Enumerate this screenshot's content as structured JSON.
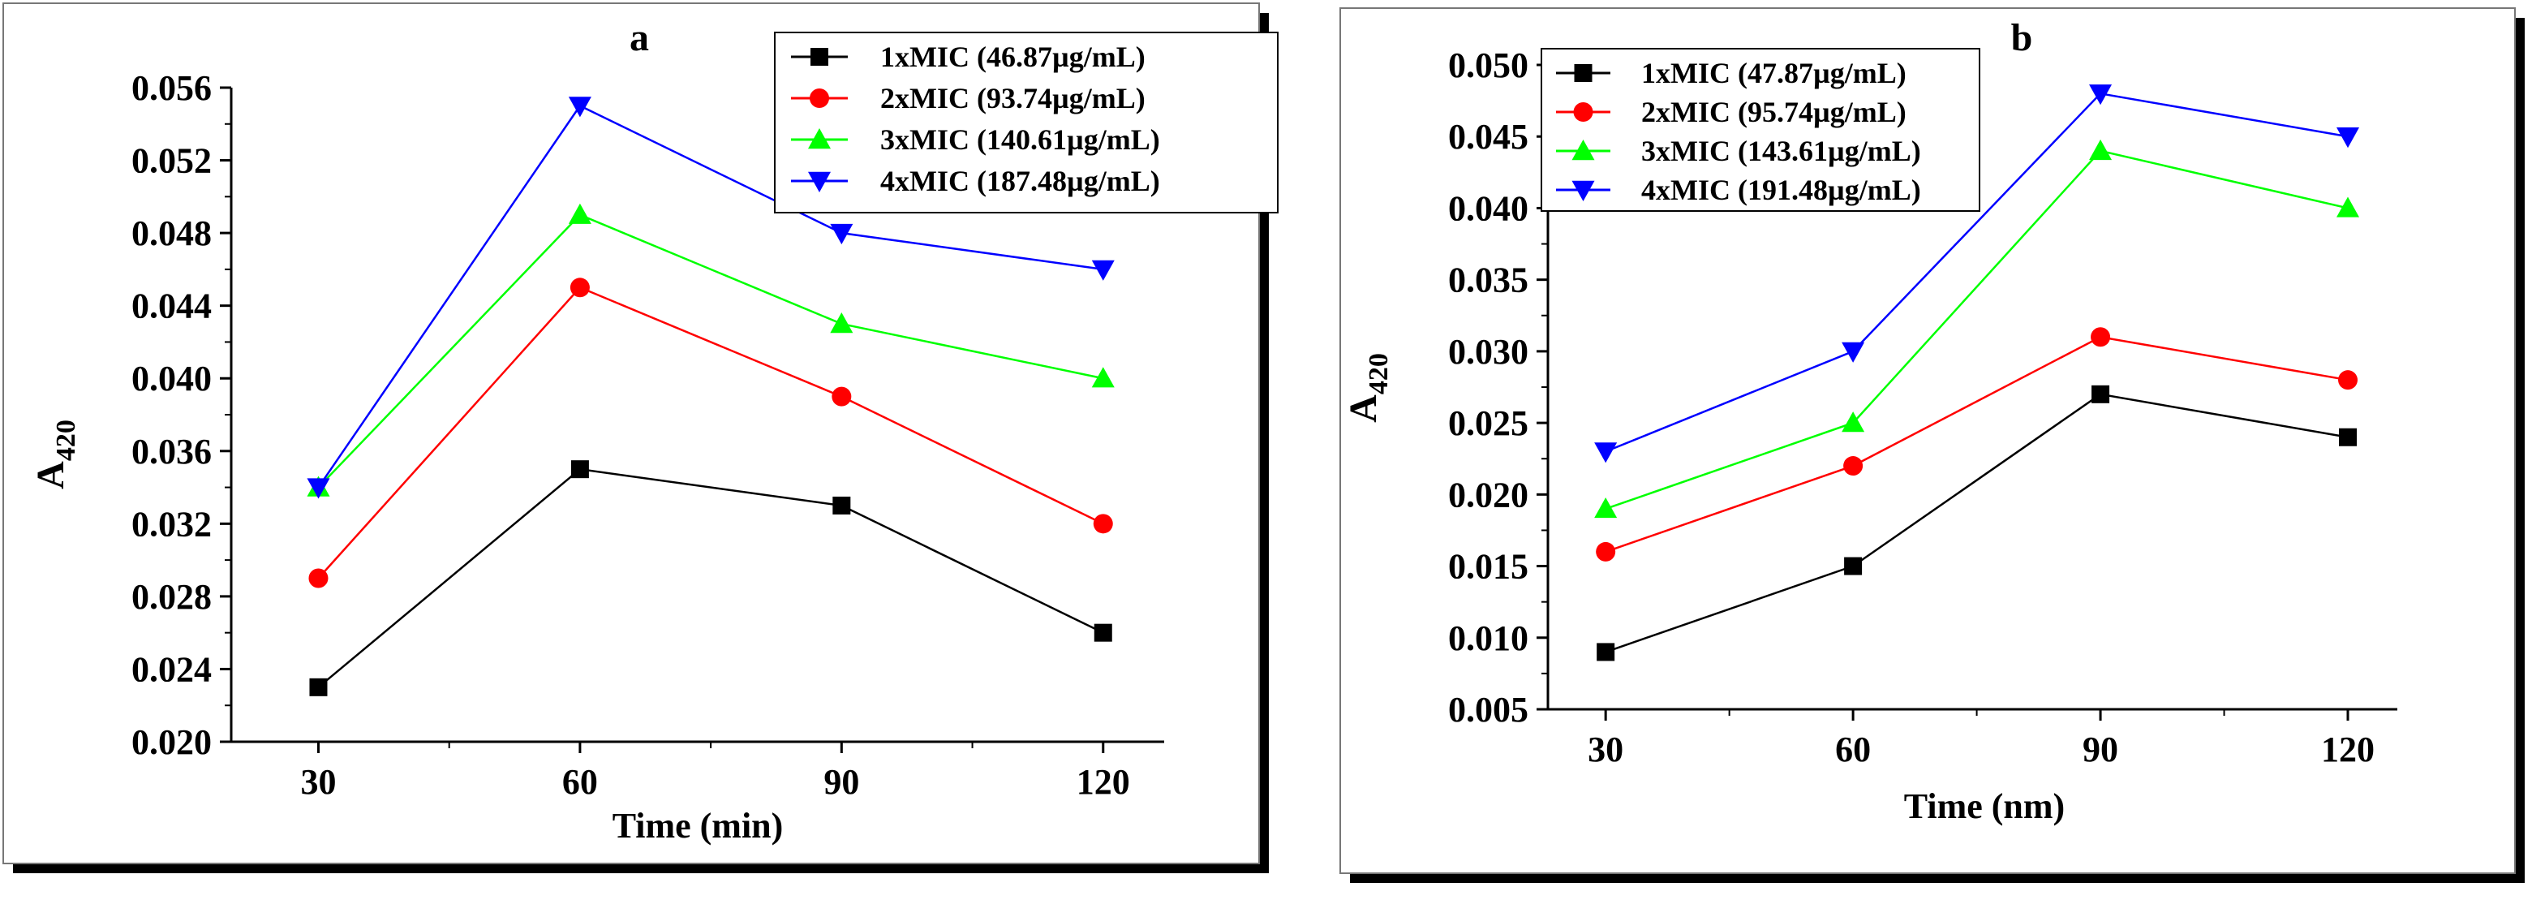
{
  "chart_data": [
    {
      "type": "line",
      "panel_label": "a",
      "xlabel": "Time (min)",
      "ylabel": "A",
      "ylabel_sub": "420",
      "x": [
        30,
        60,
        90,
        120
      ],
      "x_ticks": [
        "30",
        "60",
        "90",
        "120"
      ],
      "ylim": [
        0.02,
        0.056
      ],
      "y_ticks": [
        "0.020",
        "0.024",
        "0.028",
        "0.032",
        "0.036",
        "0.040",
        "0.044",
        "0.048",
        "0.052",
        "0.056"
      ],
      "legend_position": "top-right",
      "series": [
        {
          "name": "1xMIC (46.87µg/mL)",
          "color": "#000000",
          "marker": "square",
          "values": [
            0.023,
            0.035,
            0.033,
            0.026
          ]
        },
        {
          "name": "2xMIC (93.74µg/mL)",
          "color": "#ff0000",
          "marker": "circle",
          "values": [
            0.029,
            0.045,
            0.039,
            0.032
          ]
        },
        {
          "name": "3xMIC (140.61µg/mL)",
          "color": "#00ff00",
          "marker": "triangle-up",
          "values": [
            0.034,
            0.049,
            0.043,
            0.04
          ]
        },
        {
          "name": "4xMIC (187.48µg/mL)",
          "color": "#0000ff",
          "marker": "triangle-down",
          "values": [
            0.034,
            0.055,
            0.048,
            0.046
          ]
        }
      ]
    },
    {
      "type": "line",
      "panel_label": "b",
      "xlabel": "Time (nm)",
      "ylabel": "A",
      "ylabel_sub": "420",
      "x": [
        30,
        60,
        90,
        120
      ],
      "x_ticks": [
        "30",
        "60",
        "90",
        "120"
      ],
      "ylim": [
        0.005,
        0.05
      ],
      "y_ticks": [
        "0.005",
        "0.010",
        "0.015",
        "0.020",
        "0.025",
        "0.030",
        "0.035",
        "0.040",
        "0.045",
        "0.050"
      ],
      "legend_position": "top-left",
      "series": [
        {
          "name": "1xMIC (47.87µg/mL)",
          "color": "#000000",
          "marker": "square",
          "values": [
            0.009,
            0.015,
            0.027,
            0.024
          ]
        },
        {
          "name": "2xMIC (95.74µg/mL)",
          "color": "#ff0000",
          "marker": "circle",
          "values": [
            0.016,
            0.022,
            0.031,
            0.028
          ]
        },
        {
          "name": "3xMIC (143.61µg/mL)",
          "color": "#00ff00",
          "marker": "triangle-up",
          "values": [
            0.019,
            0.025,
            0.044,
            0.04
          ]
        },
        {
          "name": "4xMIC (191.48µg/mL)",
          "color": "#0000ff",
          "marker": "triangle-down",
          "values": [
            0.023,
            0.03,
            0.048,
            0.045
          ]
        }
      ]
    }
  ]
}
